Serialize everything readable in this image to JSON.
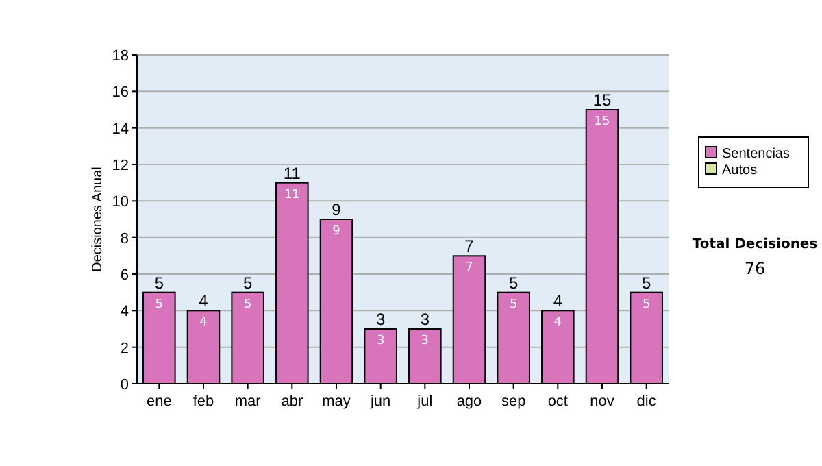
{
  "chart_data": {
    "type": "bar",
    "ylabel": "Decisiones Anual",
    "categories": [
      "ene",
      "feb",
      "mar",
      "abr",
      "may",
      "jun",
      "jul",
      "ago",
      "sep",
      "oct",
      "nov",
      "dic"
    ],
    "series": [
      {
        "name": "Sentencias",
        "color": "#d874bc",
        "values": [
          5,
          4,
          5,
          11,
          9,
          3,
          3,
          7,
          5,
          4,
          15,
          5
        ],
        "value_labels": [
          "5",
          "4",
          "5",
          "11",
          "9",
          "3",
          "3",
          "7",
          "5",
          "4",
          "15",
          "5"
        ]
      },
      {
        "name": "Autos",
        "color": "#d8e8a0",
        "values": [
          0,
          0,
          0,
          0,
          0,
          0,
          0,
          0,
          0,
          0,
          0,
          0
        ]
      }
    ],
    "stacked": true,
    "totals": [
      "5",
      "4",
      "5",
      "11",
      "9",
      "3",
      "3",
      "7",
      "5",
      "4",
      "15",
      "5"
    ],
    "ylim": [
      0,
      18
    ],
    "yticks": [
      0,
      2,
      4,
      6,
      8,
      10,
      12,
      14,
      16,
      18
    ],
    "grid": "y",
    "legend": "right",
    "annotations": [
      "Total Decisiones",
      "76"
    ]
  }
}
